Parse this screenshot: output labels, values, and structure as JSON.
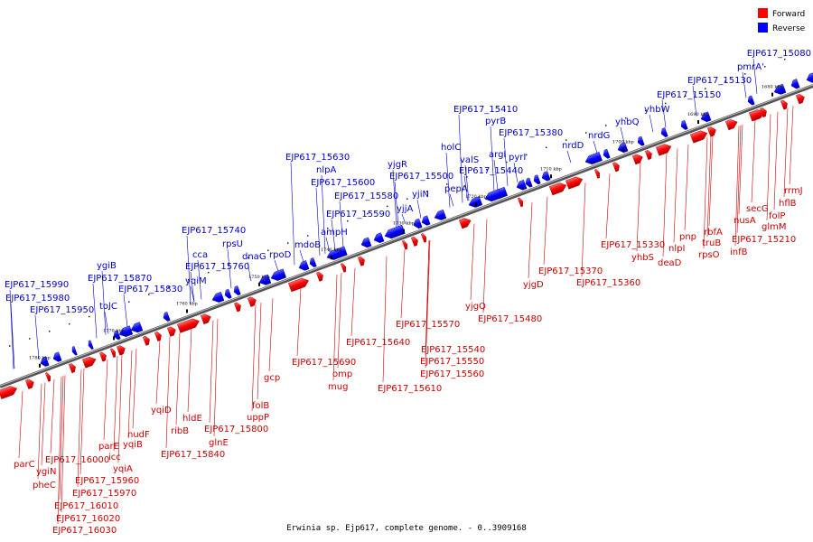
{
  "caption": "Erwinia sp. Ejp617, complete genome. - 0..3909168",
  "colors": {
    "forward": "#ff0000",
    "reverse": "#0000ff",
    "forward_label": "#cc0000",
    "reverse_label": "#0000cc",
    "backbone": "#888888"
  },
  "legend": [
    {
      "label": "Forward",
      "color": "#ff0000"
    },
    {
      "label": "Reverse",
      "color": "#0000ff"
    }
  ],
  "ticks": [
    "1680 kbp",
    "1690 kbp",
    "1700 kbp",
    "1710 kbp",
    "1720 kbp",
    "1730 kbp",
    "1740 kbp",
    "1750 kbp",
    "1760 kbp",
    "1770 kbp",
    "1780 kbp"
  ],
  "reverse_labels": [
    "EJP617_15080",
    "pmrA'",
    "EJP617_15130",
    "EJP617_15150",
    "yhbW",
    "yhbQ",
    "nrdG",
    "nrdD",
    "EJP617_15380",
    "EJP617_15410",
    "pyrB",
    "argI",
    "pyrI",
    "EJP617_15440",
    "valS",
    "holC",
    "pepA",
    "EJP617_15500",
    "yjgR",
    "yjiN",
    "yjjA",
    "EJP617_15630",
    "nlpA",
    "EJP617_15600",
    "EJP617_15580",
    "EJP617_15590",
    "ampH",
    "mdoB",
    "rpoD",
    "dnaG",
    "rpsU",
    "EJP617_15740",
    "cca",
    "EJP617_15760",
    "yqiM",
    "ygiB",
    "EJP617_15870",
    "EJP617_15830",
    "tolC",
    "EJP617_15990",
    "EJP617_15980",
    "EJP617_15950"
  ],
  "forward_labels": [
    "rrmJ",
    "hflB",
    "folP",
    "glmM",
    "secG",
    "nusA",
    "EJP617_15210",
    "infB",
    "rbfA",
    "truB",
    "rpsO",
    "pnp",
    "nlpI",
    "deaD",
    "yhbS",
    "EJP617_15330",
    "EJP617_15360",
    "EJP617_15370",
    "yjgD",
    "EJP617_15480",
    "yjgQ",
    "EJP617_15570",
    "EJP617_15540",
    "EJP617_15550",
    "EJP617_15560",
    "EJP617_15610",
    "EJP617_15640",
    "omp",
    "mug",
    "EJP617_15690",
    "gcp",
    "folB",
    "uppP",
    "EJP617_15800",
    "glnE",
    "hldE",
    "ribB",
    "EJP617_15840",
    "yqiD",
    "nudF",
    "yqiB",
    "parE",
    "icc",
    "yqiA",
    "EJP617_16000",
    "EJP617_15960",
    "EJP617_15970",
    "EJP617_16010",
    "EJP617_16020",
    "EJP617_16030",
    "parC",
    "ygiN",
    "pheC"
  ]
}
